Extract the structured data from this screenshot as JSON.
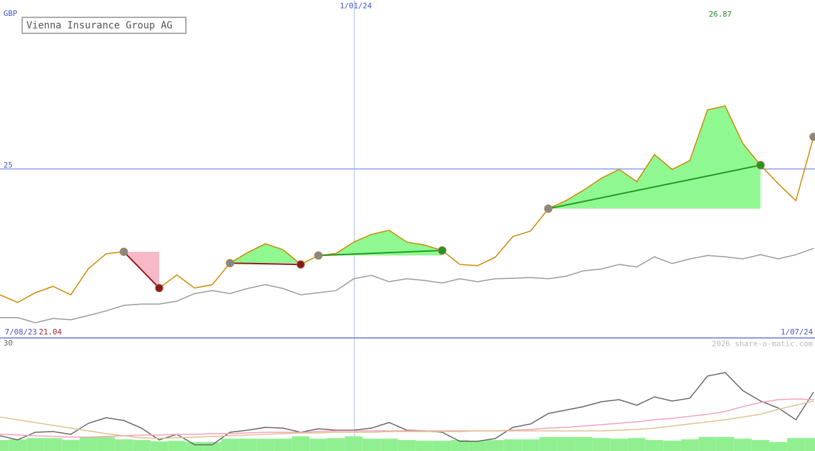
{
  "chart_data": [
    {
      "type": "line",
      "title": "Vienna Insurance Group AG",
      "unit_label": "GBP",
      "categories": [
        "7/08/23",
        null,
        null,
        null,
        null,
        null,
        null,
        null,
        null,
        null,
        null,
        null,
        null,
        null,
        null,
        null,
        null,
        null,
        null,
        null,
        "1/01/24",
        null,
        null,
        null,
        null,
        null,
        null,
        null,
        null,
        null,
        null,
        null,
        null,
        null,
        null,
        null,
        null,
        null,
        null,
        null,
        null,
        null,
        null,
        null,
        null,
        null,
        "1/07/24"
      ],
      "series": [
        {
          "color": "#cc8800",
          "values": [
            22.02,
            21.84,
            22.07,
            22.22,
            22.02,
            22.64,
            22.99,
            23.04,
            22.61,
            22.18,
            22.49,
            22.18,
            22.26,
            22.77,
            23.02,
            23.23,
            23.09,
            22.74,
            22.95,
            23.0,
            23.27,
            23.45,
            23.55,
            23.27,
            23.2,
            23.07,
            22.74,
            22.71,
            22.91,
            23.4,
            23.53,
            24.06,
            24.25,
            24.5,
            24.78,
            24.99,
            24.7,
            25.34,
            24.99,
            25.2,
            26.4,
            26.49,
            25.6,
            25.09,
            24.65,
            24.25,
            25.76
          ]
        },
        {
          "color": "#999999",
          "values": [
            21.48,
            21.48,
            21.36,
            21.46,
            21.43,
            21.53,
            21.64,
            21.77,
            21.8,
            21.8,
            21.87,
            22.05,
            22.12,
            22.05,
            22.17,
            22.26,
            22.17,
            22.02,
            22.07,
            22.12,
            22.4,
            22.48,
            22.33,
            22.4,
            22.36,
            22.3,
            22.4,
            22.33,
            22.4,
            22.41,
            22.43,
            22.4,
            22.46,
            22.59,
            22.63,
            22.74,
            22.68,
            22.92,
            22.76,
            22.87,
            22.95,
            22.92,
            22.87,
            22.97,
            22.87,
            22.97,
            23.12
          ]
        }
      ],
      "signals": [
        {
          "start": 7,
          "end": 9,
          "color": "#8b1a1a"
        },
        {
          "start": 13,
          "end": 17,
          "color": "#8b1a1a"
        },
        {
          "start": 18,
          "end": 25,
          "color": "#229922"
        },
        {
          "start": 31,
          "end": 43,
          "color": "#229922"
        },
        {
          "start": 46
        }
      ],
      "high_label": "26.87",
      "low_label": "21.04",
      "ylim": [
        21,
        29
      ],
      "yticks": [
        25
      ],
      "grid": true
    },
    {
      "type": "line",
      "series": [
        {
          "color": "#666666",
          "values": [
            2.67,
            1.44,
            3.7,
            3.9,
            3.08,
            6.37,
            8.01,
            7.19,
            4.93,
            1.44,
            3.08,
            0,
            0,
            3.7,
            4.32,
            5.14,
            4.93,
            3.7,
            4.73,
            4.32,
            4.32,
            4.93,
            6.58,
            4.32,
            4.11,
            3.7,
            1.03,
            1.03,
            1.85,
            5.14,
            6.16,
            9.25,
            10.27,
            11.3,
            12.74,
            13.36,
            11.71,
            14.18,
            12.95,
            13.77,
            20.34,
            21.37,
            16.03,
            12.95,
            10.89,
            7.4,
            15.62
          ]
        },
        {
          "color": "#f4a0b8",
          "values": [
            3.08,
            2.88,
            2.67,
            2.47,
            2.26,
            2.26,
            2.47,
            2.67,
            2.88,
            2.88,
            3.08,
            3.08,
            3.29,
            3.29,
            3.49,
            3.7,
            3.7,
            3.7,
            3.9,
            4.11,
            4.11,
            4.11,
            4.11,
            4.11,
            4.11,
            4.11,
            4.11,
            4.11,
            4.11,
            4.32,
            4.52,
            4.93,
            5.14,
            5.55,
            5.96,
            6.37,
            6.78,
            7.4,
            7.81,
            8.43,
            9.04,
            9.86,
            11.3,
            12.54,
            13.36,
            13.56,
            13.36
          ]
        },
        {
          "color": "#e0c090",
          "values": [
            8.22,
            7.4,
            6.58,
            5.75,
            4.93,
            4.11,
            3.29,
            2.67,
            2.06,
            1.85,
            2.06,
            2.26,
            2.47,
            2.67,
            2.88,
            3.08,
            3.29,
            3.49,
            3.49,
            3.7,
            3.7,
            3.7,
            3.9,
            3.9,
            3.9,
            3.9,
            3.9,
            4.11,
            4.11,
            4.11,
            4.11,
            4.11,
            4.11,
            4.11,
            4.11,
            4.32,
            4.52,
            4.93,
            5.55,
            6.16,
            6.78,
            7.4,
            8.22,
            9.04,
            10.48,
            11.71,
            12.95
          ]
        },
        {
          "color": "#90f090",
          "kind": "bar",
          "values": [
            1.4,
            1.6,
            2.0,
            2.0,
            1.4,
            2.3,
            2.3,
            1.6,
            1.4,
            1.0,
            1.2,
            0.8,
            0.8,
            1.8,
            1.8,
            1.8,
            1.8,
            2.5,
            1.8,
            2.0,
            2.5,
            1.8,
            1.8,
            1.4,
            1.2,
            1.2,
            1.4,
            1.2,
            1.4,
            1.6,
            1.6,
            2.3,
            2.3,
            2.3,
            2.0,
            1.8,
            2.0,
            1.4,
            1.2,
            1.6,
            2.3,
            2.3,
            1.8,
            1.4,
            0.8,
            2.0,
            2.0
          ]
        }
      ],
      "ylim": [
        0,
        30
      ],
      "yticks": [
        0,
        30
      ]
    }
  ],
  "watermark": "2026 share-o-matic.com"
}
